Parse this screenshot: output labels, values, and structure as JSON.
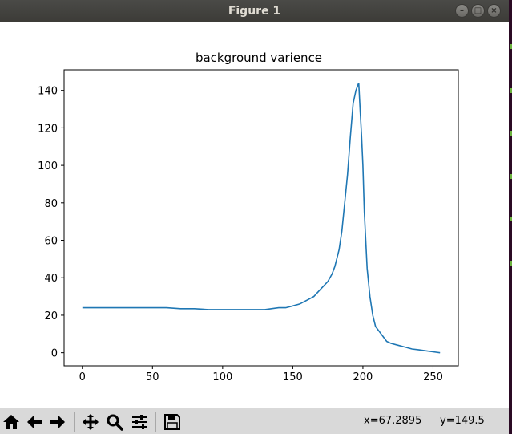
{
  "window": {
    "title": "Figure 1"
  },
  "wm": {
    "minimize": "–",
    "maximize": "□",
    "close": "×"
  },
  "chart_data": {
    "type": "line",
    "title": "background varience",
    "xlabel": "",
    "ylabel": "",
    "xlim": [
      -13,
      268
    ],
    "ylim": [
      -7,
      151
    ],
    "xticks": [
      0,
      50,
      100,
      150,
      200,
      250
    ],
    "yticks": [
      0,
      20,
      40,
      60,
      80,
      100,
      120,
      140
    ],
    "grid": false,
    "line_color": "#1f77b4",
    "series": [
      {
        "x": [
          0,
          10,
          20,
          30,
          40,
          45,
          50,
          60,
          70,
          80,
          90,
          100,
          110,
          120,
          130,
          140,
          145,
          150,
          155,
          160,
          165,
          170,
          175,
          178,
          180,
          183,
          185,
          187,
          189,
          191,
          193,
          195,
          197,
          198,
          199,
          200,
          201,
          203,
          205,
          207,
          209,
          211,
          213,
          215,
          217,
          220,
          225,
          230,
          235,
          240,
          245,
          250,
          255
        ],
        "y": [
          24,
          24,
          24,
          24,
          24,
          24,
          24,
          24,
          23.5,
          23.5,
          23,
          23,
          23,
          23,
          23,
          24,
          24,
          25,
          26,
          28,
          30,
          34,
          38,
          42,
          46,
          55,
          65,
          80,
          95,
          115,
          133,
          140,
          144,
          130,
          116,
          100,
          75,
          45,
          30,
          20,
          14,
          12,
          10,
          8,
          6,
          5,
          4,
          3,
          2,
          1.5,
          1,
          0.5,
          0
        ]
      }
    ]
  },
  "toolbar": {
    "home": "home",
    "back": "back",
    "forward": "forward",
    "pan": "pan",
    "zoom": "zoom",
    "configure": "configure",
    "save": "save"
  },
  "status": {
    "x_readout": "x=67.2895",
    "y_readout": "y=149.5"
  }
}
